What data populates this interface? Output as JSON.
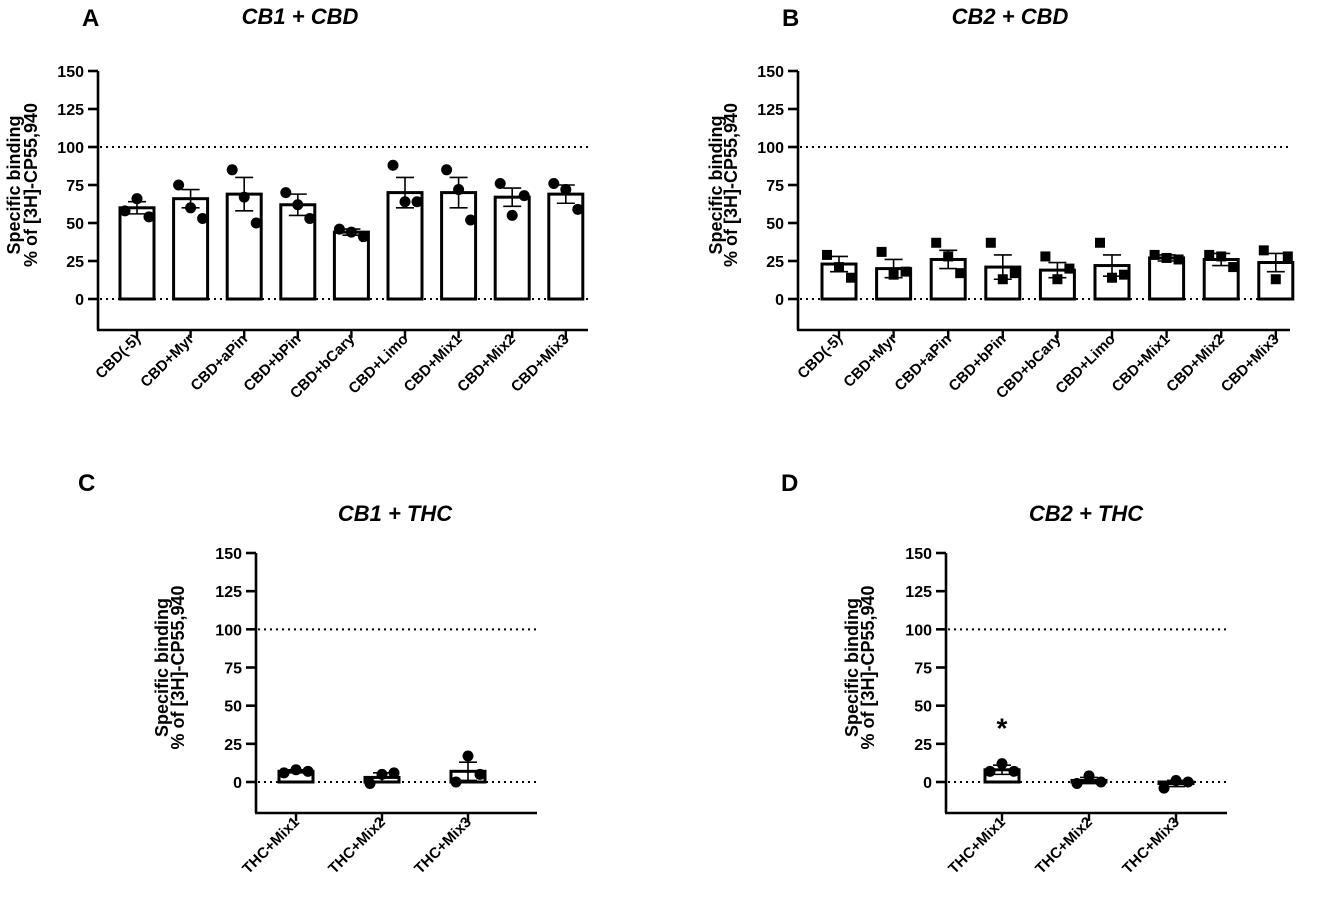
{
  "figure": {
    "panels": [
      "A",
      "B",
      "C",
      "D"
    ]
  },
  "chart_data": [
    {
      "id": "A",
      "type": "bar",
      "panel_label": "A",
      "title": "CB1 + CBD",
      "ylabel_line1": "Specific binding",
      "ylabel_line2": "% of [3H]-CP55,940",
      "xlabel": "",
      "ylim": [
        -20,
        150
      ],
      "yticks": [
        0,
        25,
        50,
        75,
        100,
        125,
        150
      ],
      "reference_lines": [
        0,
        100
      ],
      "marker": "circle",
      "categories": [
        "CBD(-5)",
        "CBD+Myr",
        "CBD+aPin",
        "CBD+bPin",
        "CBD+bCary",
        "CBD+Limo",
        "CBD+Mix1",
        "CBD+Mix2",
        "CBD+Mix3"
      ],
      "values": [
        60,
        66,
        69,
        62,
        44,
        70,
        70,
        67,
        69
      ],
      "errors": [
        4,
        6,
        11,
        7,
        2,
        10,
        10,
        6,
        6
      ],
      "points": [
        [
          58,
          66,
          54
        ],
        [
          75,
          60,
          53
        ],
        [
          85,
          67,
          50
        ],
        [
          70,
          62,
          53
        ],
        [
          46,
          44,
          41
        ],
        [
          88,
          64,
          64
        ],
        [
          85,
          72,
          52
        ],
        [
          76,
          55,
          68
        ],
        [
          76,
          72,
          59
        ]
      ],
      "annotations": []
    },
    {
      "id": "B",
      "type": "bar",
      "panel_label": "B",
      "title": "CB2 + CBD",
      "ylabel_line1": "Specific binding",
      "ylabel_line2": "% of [3H]-CP55,940",
      "xlabel": "",
      "ylim": [
        -20,
        150
      ],
      "yticks": [
        0,
        25,
        50,
        75,
        100,
        125,
        150
      ],
      "reference_lines": [
        0,
        100
      ],
      "marker": "square",
      "categories": [
        "CBD(-5)",
        "CBD+Myr",
        "CBD+aPin",
        "CBD+bPin",
        "CBD+bCary",
        "CBD+Limo",
        "CBD+Mix1",
        "CBD+Mix2",
        "CBD+Mix3"
      ],
      "values": [
        23,
        20,
        26,
        21,
        19,
        22,
        27,
        26,
        24
      ],
      "errors": [
        5,
        6,
        6,
        8,
        5,
        7,
        2,
        4,
        6
      ],
      "points": [
        [
          29,
          21,
          14
        ],
        [
          31,
          16,
          18
        ],
        [
          37,
          28,
          17
        ],
        [
          37,
          13,
          17
        ],
        [
          28,
          13,
          20
        ],
        [
          37,
          14,
          16
        ],
        [
          29,
          27,
          26
        ],
        [
          29,
          28,
          21
        ],
        [
          32,
          13,
          28
        ]
      ],
      "annotations": []
    },
    {
      "id": "C",
      "type": "bar",
      "panel_label": "C",
      "title": "CB1 + THC",
      "ylabel_line1": "Specific binding",
      "ylabel_line2": "% of [3H]-CP55,940",
      "xlabel": "",
      "ylim": [
        -20,
        150
      ],
      "yticks": [
        0,
        25,
        50,
        75,
        100,
        125,
        150
      ],
      "reference_lines": [
        0,
        100
      ],
      "marker": "circle",
      "categories": [
        "THC+Mix1",
        "THC+Mix2",
        "THC+Mix3"
      ],
      "values": [
        7,
        3,
        7
      ],
      "errors": [
        1,
        3,
        6
      ],
      "points": [
        [
          6,
          8,
          7
        ],
        [
          -1,
          5,
          6
        ],
        [
          0,
          17,
          5
        ]
      ],
      "annotations": []
    },
    {
      "id": "D",
      "type": "bar",
      "panel_label": "D",
      "title": "CB2 + THC",
      "ylabel_line1": "Specific binding",
      "ylabel_line2": "% of [3H]-CP55,940",
      "xlabel": "",
      "ylim": [
        -20,
        150
      ],
      "yticks": [
        0,
        25,
        50,
        75,
        100,
        125,
        150
      ],
      "reference_lines": [
        0,
        100
      ],
      "marker": "circle",
      "categories": [
        "THC+Mix1",
        "THC+Mix2",
        "THC+Mix3"
      ],
      "values": [
        8,
        1,
        -1
      ],
      "errors": [
        3,
        2,
        2
      ],
      "points": [
        [
          7,
          12,
          7
        ],
        [
          -1,
          4,
          0
        ],
        [
          -4,
          1,
          0
        ]
      ],
      "annotations": [
        {
          "category_index": 0,
          "text": "*"
        }
      ]
    }
  ]
}
